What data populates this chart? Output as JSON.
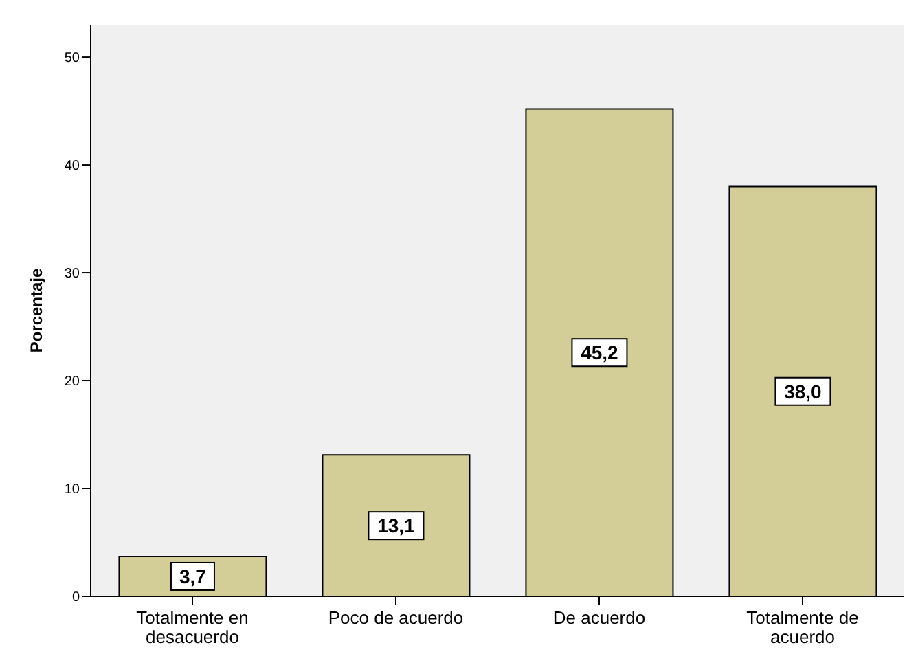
{
  "chart_data": {
    "type": "bar",
    "ylabel": "Porcentaje",
    "categories": [
      "Totalmente en desacuerdo",
      "Poco de acuerdo",
      "De acuerdo",
      "Totalmente de acuerdo"
    ],
    "values": [
      3.7,
      13.1,
      45.2,
      38.0
    ],
    "value_labels": [
      "3,7",
      "13,1",
      "45,2",
      "38,0"
    ],
    "color": "#d3ce97",
    "ylim": [
      0,
      53
    ],
    "yticks": [
      0,
      10,
      20,
      30,
      40,
      50
    ],
    "grid": false,
    "legend": false
  }
}
